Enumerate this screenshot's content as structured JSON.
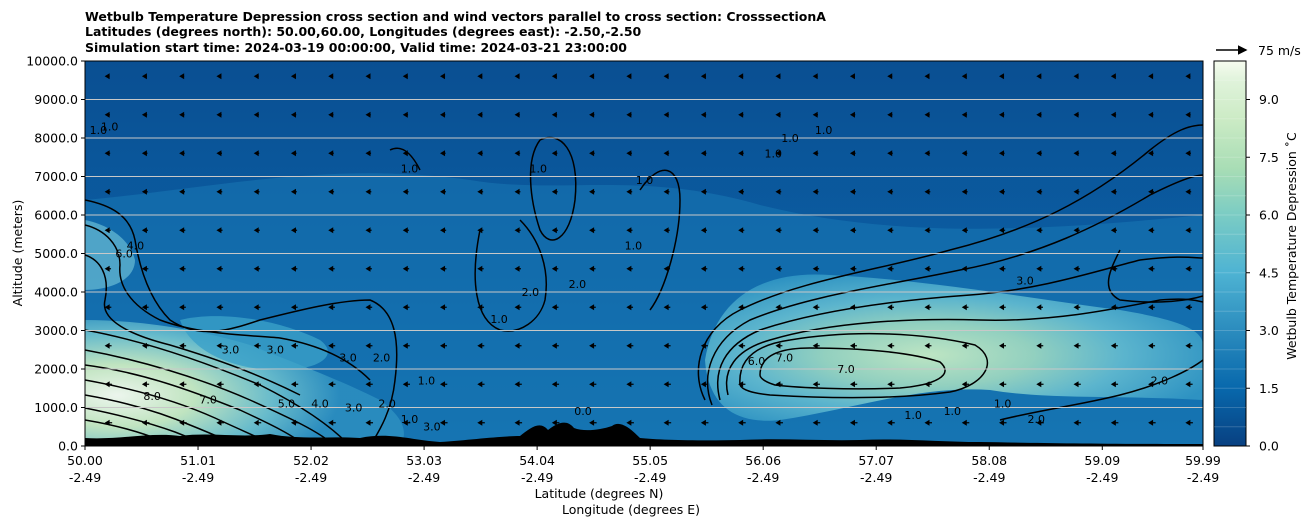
{
  "chart_data": {
    "type": "heatmap",
    "title_lines": [
      "Wetbulb Temperature Depression cross section and wind vectors parallel to cross section: CrosssectionA",
      "Latitudes (degrees north): 50.00,60.00, Longitudes (degrees east): -2.50,-2.50",
      "Simulation start time: 2024-03-19 00:00:00, Valid time: 2024-03-21 23:00:00"
    ],
    "xlabel_lat": "Latitude (degrees N)",
    "xlabel_lon": "Longitude (degrees E)",
    "ylabel": "Altitude (meters)",
    "colorbar_label": "Wetbulb Temperature Depression ˚C",
    "quiver_key": "75 m/s",
    "x_ticks": [
      {
        "lat": 50.0,
        "lat_label": "50.00",
        "lon_label": "-2.49"
      },
      {
        "lat": 51.01,
        "lat_label": "51.01",
        "lon_label": "-2.49"
      },
      {
        "lat": 52.02,
        "lat_label": "52.02",
        "lon_label": "-2.49"
      },
      {
        "lat": 53.03,
        "lat_label": "53.03",
        "lon_label": "-2.49"
      },
      {
        "lat": 54.04,
        "lat_label": "54.04",
        "lon_label": "-2.49"
      },
      {
        "lat": 55.05,
        "lat_label": "55.05",
        "lon_label": "-2.49"
      },
      {
        "lat": 56.06,
        "lat_label": "56.06",
        "lon_label": "-2.49"
      },
      {
        "lat": 57.07,
        "lat_label": "57.07",
        "lon_label": "-2.49"
      },
      {
        "lat": 58.08,
        "lat_label": "58.08",
        "lon_label": "-2.49"
      },
      {
        "lat": 59.09,
        "lat_label": "59.09",
        "lon_label": "-2.49"
      },
      {
        "lat": 59.99,
        "lat_label": "59.99",
        "lon_label": "-2.49"
      }
    ],
    "xlim": [
      50.0,
      59.99
    ],
    "y_ticks": [
      0,
      1000,
      2000,
      3000,
      4000,
      5000,
      6000,
      7000,
      8000,
      9000,
      10000
    ],
    "y_tick_labels": [
      "0.0",
      "1000.0",
      "2000.0",
      "3000.0",
      "4000.0",
      "5000.0",
      "6000.0",
      "7000.0",
      "8000.0",
      "9000.0",
      "10000.0"
    ],
    "ylim": [
      0,
      10000
    ],
    "colorbar_range": [
      0,
      10
    ],
    "colorbar_ticks": [
      0,
      1.5,
      3,
      4.5,
      6,
      7.5,
      9
    ],
    "colorbar_tick_labels": [
      "0.0",
      "1.5",
      "3.0",
      "4.5",
      "6.0",
      "7.5",
      "9.0"
    ],
    "colorbar_levels": 20,
    "colormap": "GnBu_r",
    "horizontal_grid": true,
    "wind_direction": "southward (toward lower latitude)",
    "contour_labels": [
      {
        "text": "1.0",
        "lat": 50.12,
        "alt": 8100
      },
      {
        "text": "1.0",
        "lat": 50.22,
        "alt": 8200
      },
      {
        "text": "1.0",
        "lat": 52.9,
        "alt": 7100
      },
      {
        "text": "1.0",
        "lat": 54.05,
        "alt": 7100
      },
      {
        "text": "1.0",
        "lat": 55.0,
        "alt": 6800
      },
      {
        "text": "1.0",
        "lat": 56.15,
        "alt": 7500
      },
      {
        "text": "1.0",
        "lat": 56.3,
        "alt": 7900
      },
      {
        "text": "1.0",
        "lat": 56.6,
        "alt": 8100
      },
      {
        "text": "1.0",
        "lat": 54.9,
        "alt": 5100
      },
      {
        "text": "1.0",
        "lat": 53.7,
        "alt": 3200
      },
      {
        "text": "1.0",
        "lat": 53.05,
        "alt": 1600
      },
      {
        "text": "2.0",
        "lat": 53.98,
        "alt": 3900
      },
      {
        "text": "2.0",
        "lat": 54.4,
        "alt": 4100
      },
      {
        "text": "2.0",
        "lat": 52.65,
        "alt": 2200
      },
      {
        "text": "2.0",
        "lat": 59.6,
        "alt": 1600
      },
      {
        "text": "3.0",
        "lat": 51.3,
        "alt": 2400
      },
      {
        "text": "3.0",
        "lat": 51.7,
        "alt": 2400
      },
      {
        "text": "3.0",
        "lat": 52.35,
        "alt": 2200
      },
      {
        "text": "3.0",
        "lat": 58.4,
        "alt": 4200
      },
      {
        "text": "4.0",
        "lat": 50.45,
        "alt": 5100
      },
      {
        "text": "6.0",
        "lat": 50.35,
        "alt": 4900
      },
      {
        "text": "6.0",
        "lat": 56.0,
        "alt": 2100
      },
      {
        "text": "7.0",
        "lat": 56.25,
        "alt": 2200
      },
      {
        "text": "7.0",
        "lat": 56.8,
        "alt": 1900
      },
      {
        "text": "8.0",
        "lat": 50.6,
        "alt": 1200
      },
      {
        "text": "7.0",
        "lat": 51.1,
        "alt": 1100
      },
      {
        "text": "5.0",
        "lat": 51.8,
        "alt": 1000
      },
      {
        "text": "4.0",
        "lat": 52.1,
        "alt": 1000
      },
      {
        "text": "3.0",
        "lat": 52.4,
        "alt": 900
      },
      {
        "text": "2.0",
        "lat": 52.7,
        "alt": 1000
      },
      {
        "text": "3.0",
        "lat": 53.1,
        "alt": 400
      },
      {
        "text": "1.0",
        "lat": 52.9,
        "alt": 600
      },
      {
        "text": "0.0",
        "lat": 54.45,
        "alt": 800
      },
      {
        "text": "1.0",
        "lat": 57.4,
        "alt": 700
      },
      {
        "text": "1.0",
        "lat": 57.75,
        "alt": 800
      },
      {
        "text": "1.0",
        "lat": 58.2,
        "alt": 1000
      },
      {
        "text": "2.0",
        "lat": 58.5,
        "alt": 600
      }
    ]
  }
}
